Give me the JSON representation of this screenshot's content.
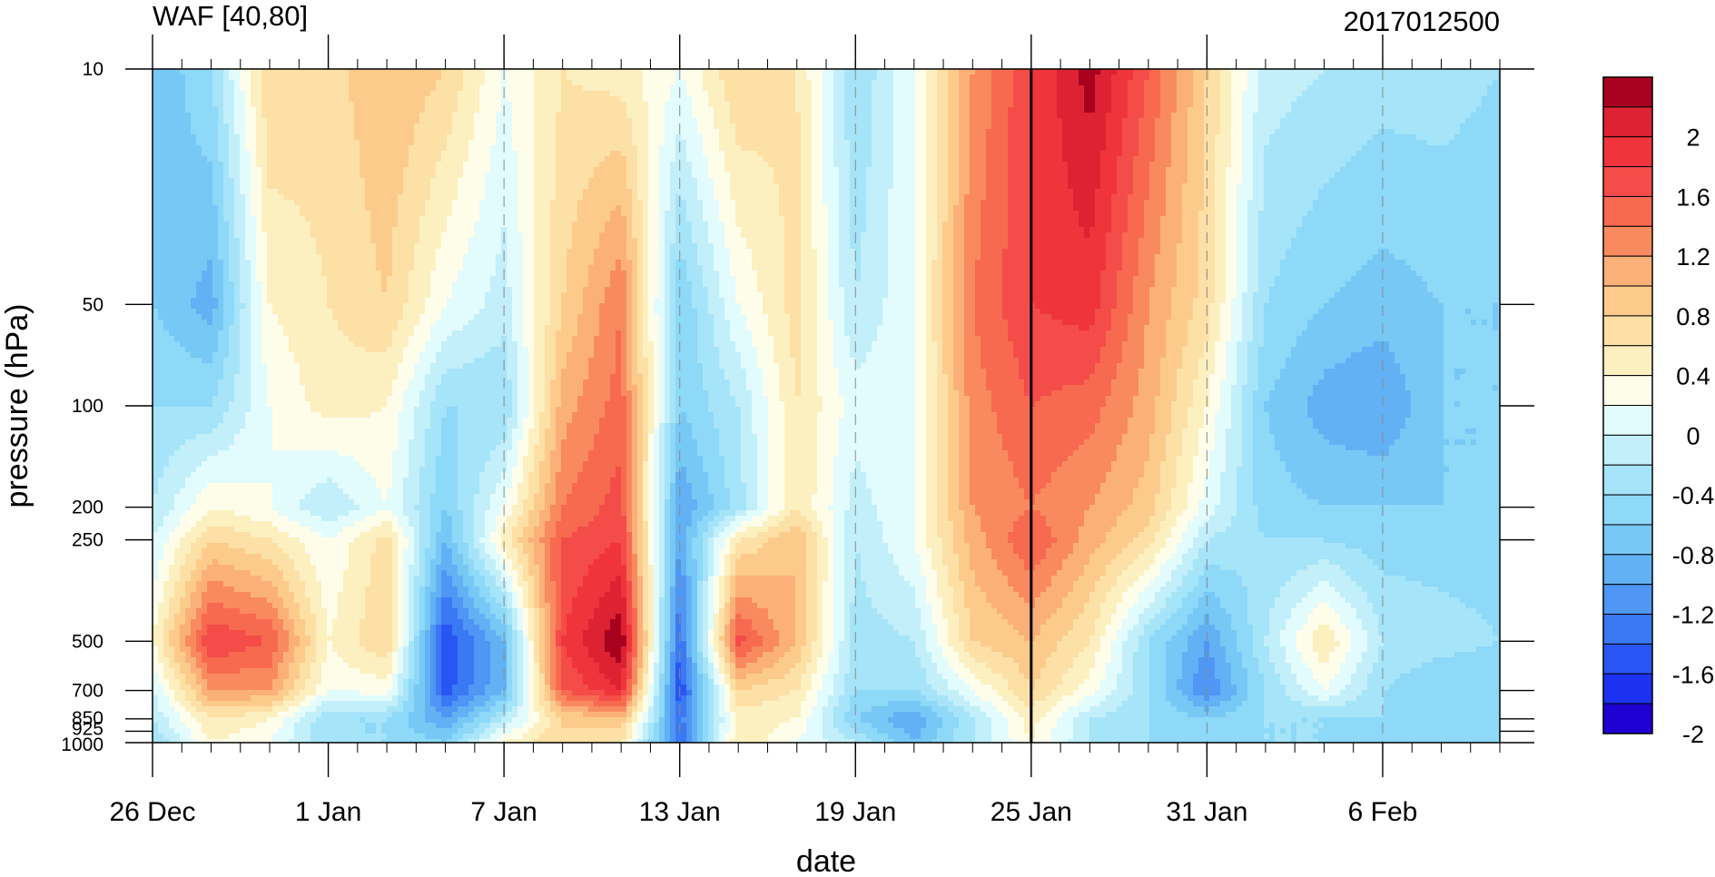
{
  "chart_data": {
    "type": "heatmap",
    "title_left": "WAF [40,80]",
    "title_right": "2017012500",
    "xlabel": "date",
    "ylabel": "pressure (hPa)",
    "x_axis": {
      "type": "date",
      "range": [
        "2016-12-26",
        "2017-02-10"
      ],
      "tick_labels": [
        "26 Dec",
        "1 Jan",
        "7 Jan",
        "13 Jan",
        "19 Jan",
        "25 Jan",
        "31 Jan",
        "6 Feb"
      ],
      "tick_dates": [
        "2016-12-26",
        "2017-01-01",
        "2017-01-07",
        "2017-01-13",
        "2017-01-19",
        "2017-01-25",
        "2017-01-31",
        "2017-02-06"
      ],
      "minor_tick_interval_days": 1
    },
    "y_axis": {
      "scale": "log",
      "inverted": true,
      "range": [
        1000,
        10
      ],
      "tick_values": [
        10,
        50,
        100,
        200,
        250,
        500,
        700,
        850,
        925,
        1000
      ],
      "tick_labels": [
        "10",
        "50",
        "100",
        "200",
        "250",
        "500",
        "700",
        "850",
        "925",
        "1000"
      ]
    },
    "colorbar": {
      "levels": [
        -2.2,
        -2.0,
        -1.8,
        -1.6,
        -1.4,
        -1.2,
        -1.0,
        -0.8,
        -0.6,
        -0.4,
        -0.2,
        0.0,
        0.2,
        0.4,
        0.6,
        0.8,
        1.0,
        1.2,
        1.4,
        1.6,
        1.8,
        2.0,
        2.2
      ],
      "colors": [
        "#1e00d2",
        "#1c32f0",
        "#2a55f5",
        "#3b78f4",
        "#4f96f5",
        "#63b1f5",
        "#78c8f6",
        "#8ed8f8",
        "#a6e4f9",
        "#c2effa",
        "#e2fbfd",
        "#fefdea",
        "#fdf0c0",
        "#fde0a6",
        "#fccb8c",
        "#fbb07a",
        "#f98a60",
        "#f76a50",
        "#f44c48",
        "#f0343c",
        "#dd2234",
        "#a8001f"
      ],
      "tick_labels": [
        "2",
        "1.6",
        "1.2",
        "0.8",
        "0.4",
        "0",
        "-0.4",
        "-0.8",
        "-1.2",
        "-1.6",
        "-2"
      ]
    },
    "reference_line_date": "2017-01-25",
    "dashed_grid_dates": [
      "2017-01-07",
      "2017-01-13",
      "2017-01-19",
      "2017-01-31",
      "2017-02-06"
    ],
    "approx_field": {
      "note_dates": [
        "2016-12-26",
        "2016-12-28",
        "2016-12-30",
        "2017-01-01",
        "2017-01-03",
        "2017-01-05",
        "2017-01-07",
        "2017-01-09",
        "2017-01-11",
        "2017-01-13",
        "2017-01-15",
        "2017-01-17",
        "2017-01-19",
        "2017-01-21",
        "2017-01-23",
        "2017-01-25",
        "2017-01-27",
        "2017-01-29",
        "2017-01-31",
        "2017-02-02",
        "2017-02-04",
        "2017-02-06",
        "2017-02-08",
        "2017-02-10"
      ],
      "levels_hPa": [
        10,
        50,
        100,
        200,
        250,
        500,
        700,
        850,
        1000
      ],
      "values": [
        [
          -1.0,
          -0.6,
          0.6,
          0.5,
          0.8,
          0.6,
          0.0,
          0.4,
          0.3,
          0.0,
          0.6,
          0.4,
          -0.6,
          0.0,
          1.0,
          1.6,
          2.1,
          1.4,
          0.6,
          -0.3,
          -0.4,
          -0.5,
          -0.5,
          -0.6
        ],
        [
          -0.8,
          -1.1,
          0.2,
          0.4,
          0.6,
          0.0,
          -0.3,
          0.6,
          1.2,
          -0.8,
          0.0,
          0.5,
          -0.4,
          0.0,
          1.2,
          1.6,
          1.7,
          1.0,
          0.5,
          -0.6,
          -0.8,
          -0.9,
          -0.8,
          -0.8
        ],
        [
          -0.6,
          -0.6,
          0.0,
          0.3,
          0.2,
          -0.6,
          -0.6,
          0.9,
          1.3,
          -0.8,
          -0.4,
          0.4,
          -0.1,
          0.0,
          1.1,
          1.4,
          1.3,
          0.9,
          0.2,
          -0.8,
          -1.1,
          -1.2,
          -0.8,
          -0.8
        ],
        [
          -0.4,
          0.2,
          0.0,
          -0.4,
          0.0,
          -0.8,
          0.0,
          1.2,
          1.5,
          -1.2,
          -0.5,
          0.4,
          -0.3,
          0.0,
          1.0,
          1.2,
          1.0,
          0.7,
          -0.1,
          -0.7,
          -0.8,
          -0.8,
          -0.8,
          -0.8
        ],
        [
          -0.2,
          0.6,
          0.4,
          0.0,
          0.5,
          -1.0,
          0.3,
          1.4,
          1.6,
          -1.2,
          0.4,
          0.8,
          -0.4,
          0.0,
          0.9,
          1.4,
          0.9,
          0.5,
          -0.4,
          -0.6,
          -0.6,
          -0.7,
          -0.7,
          -0.7
        ],
        [
          0.2,
          1.6,
          1.4,
          0.2,
          0.6,
          -1.8,
          -1.0,
          1.6,
          2.2,
          -1.6,
          1.5,
          0.8,
          -0.5,
          -0.4,
          0.6,
          0.8,
          0.4,
          -0.6,
          -1.2,
          -0.4,
          0.4,
          -0.4,
          -0.5,
          -0.6
        ],
        [
          -0.2,
          1.0,
          1.0,
          0.0,
          0.1,
          -1.7,
          -1.0,
          1.4,
          1.8,
          -1.8,
          0.6,
          0.4,
          -0.6,
          -0.6,
          0.0,
          0.6,
          0.1,
          -0.6,
          -1.4,
          -0.6,
          0.0,
          -0.6,
          -0.8,
          -0.8
        ],
        [
          -0.4,
          0.4,
          0.2,
          -0.6,
          -0.6,
          -1.2,
          -0.4,
          0.6,
          0.8,
          -1.5,
          0.3,
          0.2,
          -0.8,
          -1.2,
          -0.4,
          0.3,
          -0.4,
          -0.6,
          -0.8,
          -0.6,
          -0.6,
          -0.6,
          -0.7,
          -0.7
        ],
        [
          -0.6,
          0.2,
          0.0,
          -0.6,
          -0.6,
          -0.8,
          0.2,
          0.6,
          0.4,
          -1.6,
          0.4,
          0.0,
          -0.4,
          -1.0,
          -0.4,
          0.2,
          -0.4,
          -0.6,
          -0.6,
          -0.6,
          -0.6,
          -0.7,
          -0.7,
          -0.7
        ]
      ]
    }
  }
}
